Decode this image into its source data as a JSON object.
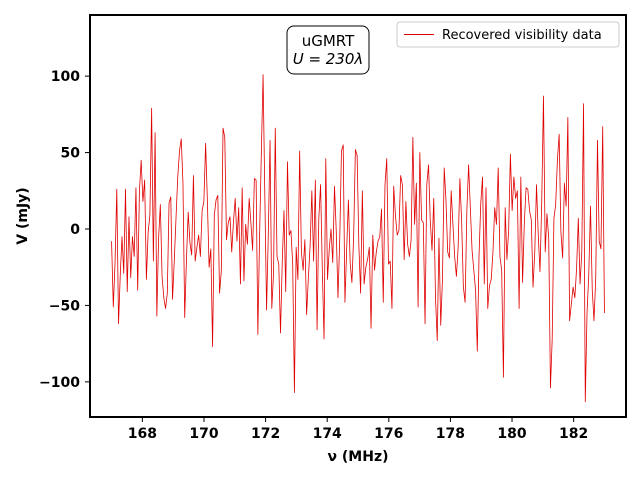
{
  "chart_data": {
    "type": "line",
    "title": "",
    "xlabel": "ν (MHz)",
    "ylabel": "V (mJy)",
    "xlim": [
      166.3,
      183.7
    ],
    "ylim": [
      -123,
      140
    ],
    "x_ticks": [
      168,
      170,
      172,
      174,
      176,
      178,
      180,
      182
    ],
    "y_ticks": [
      -100,
      -50,
      0,
      50,
      100
    ],
    "x_tick_labels": [
      "168",
      "170",
      "172",
      "174",
      "176",
      "178",
      "180",
      "182"
    ],
    "y_tick_labels": [
      "−100",
      "−50",
      "0",
      "50",
      "100"
    ],
    "grid": false,
    "legend_position": "top-right",
    "annotation": {
      "line1": "uGMRT",
      "line2": "U = 230λ"
    },
    "series": [
      {
        "name": "Recovered visibility data",
        "color": "#e00000",
        "x_start": 167.0,
        "x_end": 183.0,
        "values": [
          -8,
          -51,
          -22,
          26,
          -62,
          -30,
          -5,
          -29,
          26,
          -41,
          8,
          -32,
          -5,
          -18,
          27,
          -40,
          25,
          45,
          18,
          32,
          -33,
          -2,
          9,
          79,
          -21,
          63,
          -57,
          -6,
          16,
          -31,
          -45,
          -52,
          -42,
          17,
          21,
          -46,
          -21,
          7,
          34,
          51,
          59,
          30,
          -58,
          -20,
          11,
          -9,
          -17,
          35,
          -21,
          -12,
          -4,
          -18,
          12,
          18,
          56,
          19,
          -25,
          -13,
          -77,
          9,
          19,
          22,
          -42,
          -28,
          66,
          60,
          -7,
          4,
          8,
          -15,
          5,
          20,
          -8,
          14,
          -36,
          27,
          -34,
          3,
          -10,
          20,
          4,
          -14,
          33,
          32,
          -69,
          -4,
          50,
          101,
          22,
          -53,
          -3,
          58,
          -52,
          -29,
          66,
          -18,
          -23,
          -68,
          -22,
          12,
          -41,
          44,
          -4,
          -1,
          -23,
          -107,
          -12,
          -33,
          51,
          -15,
          -27,
          -7,
          -56,
          -32,
          -11,
          25,
          -21,
          32,
          -66,
          7,
          29,
          -26,
          -72,
          46,
          -33,
          -13,
          0,
          -22,
          28,
          -1,
          -45,
          -8,
          51,
          55,
          -48,
          -13,
          19,
          -22,
          -35,
          -5,
          52,
          48,
          -11,
          -42,
          25,
          -36,
          -25,
          -20,
          -12,
          -65,
          -4,
          -27,
          -15,
          -8,
          -5,
          13,
          -48,
          29,
          46,
          -23,
          -21,
          -52,
          28,
          9,
          -4,
          -1,
          35,
          29,
          -20,
          18,
          -10,
          -18,
          -7,
          60,
          3,
          30,
          -51,
          50,
          6,
          4,
          -62,
          29,
          42,
          5,
          -14,
          20,
          -45,
          -73,
          -6,
          -63,
          -33,
          40,
          19,
          -15,
          -19,
          25,
          3,
          -18,
          -31,
          -12,
          33,
          5,
          -38,
          -48,
          12,
          42,
          14,
          -14,
          -27,
          -40,
          -80,
          -17,
          17,
          34,
          -36,
          27,
          -52,
          -37,
          -33,
          -15,
          14,
          3,
          40,
          -18,
          -27,
          -97,
          14,
          -20,
          -1,
          49,
          12,
          34,
          20,
          25,
          -52,
          34,
          -35,
          4,
          27,
          26,
          12,
          6,
          -38,
          -15,
          29,
          -4,
          -28,
          18,
          87,
          -15,
          10,
          -6,
          -104,
          -72,
          7,
          16,
          45,
          62,
          -2,
          -19,
          30,
          15,
          73,
          -60,
          -49,
          -38,
          -45,
          -26,
          7,
          -36,
          -15,
          82,
          -113,
          -55,
          -30,
          15,
          -40,
          -60,
          -32,
          58,
          -8,
          -13,
          67,
          -55
        ]
      }
    ]
  }
}
